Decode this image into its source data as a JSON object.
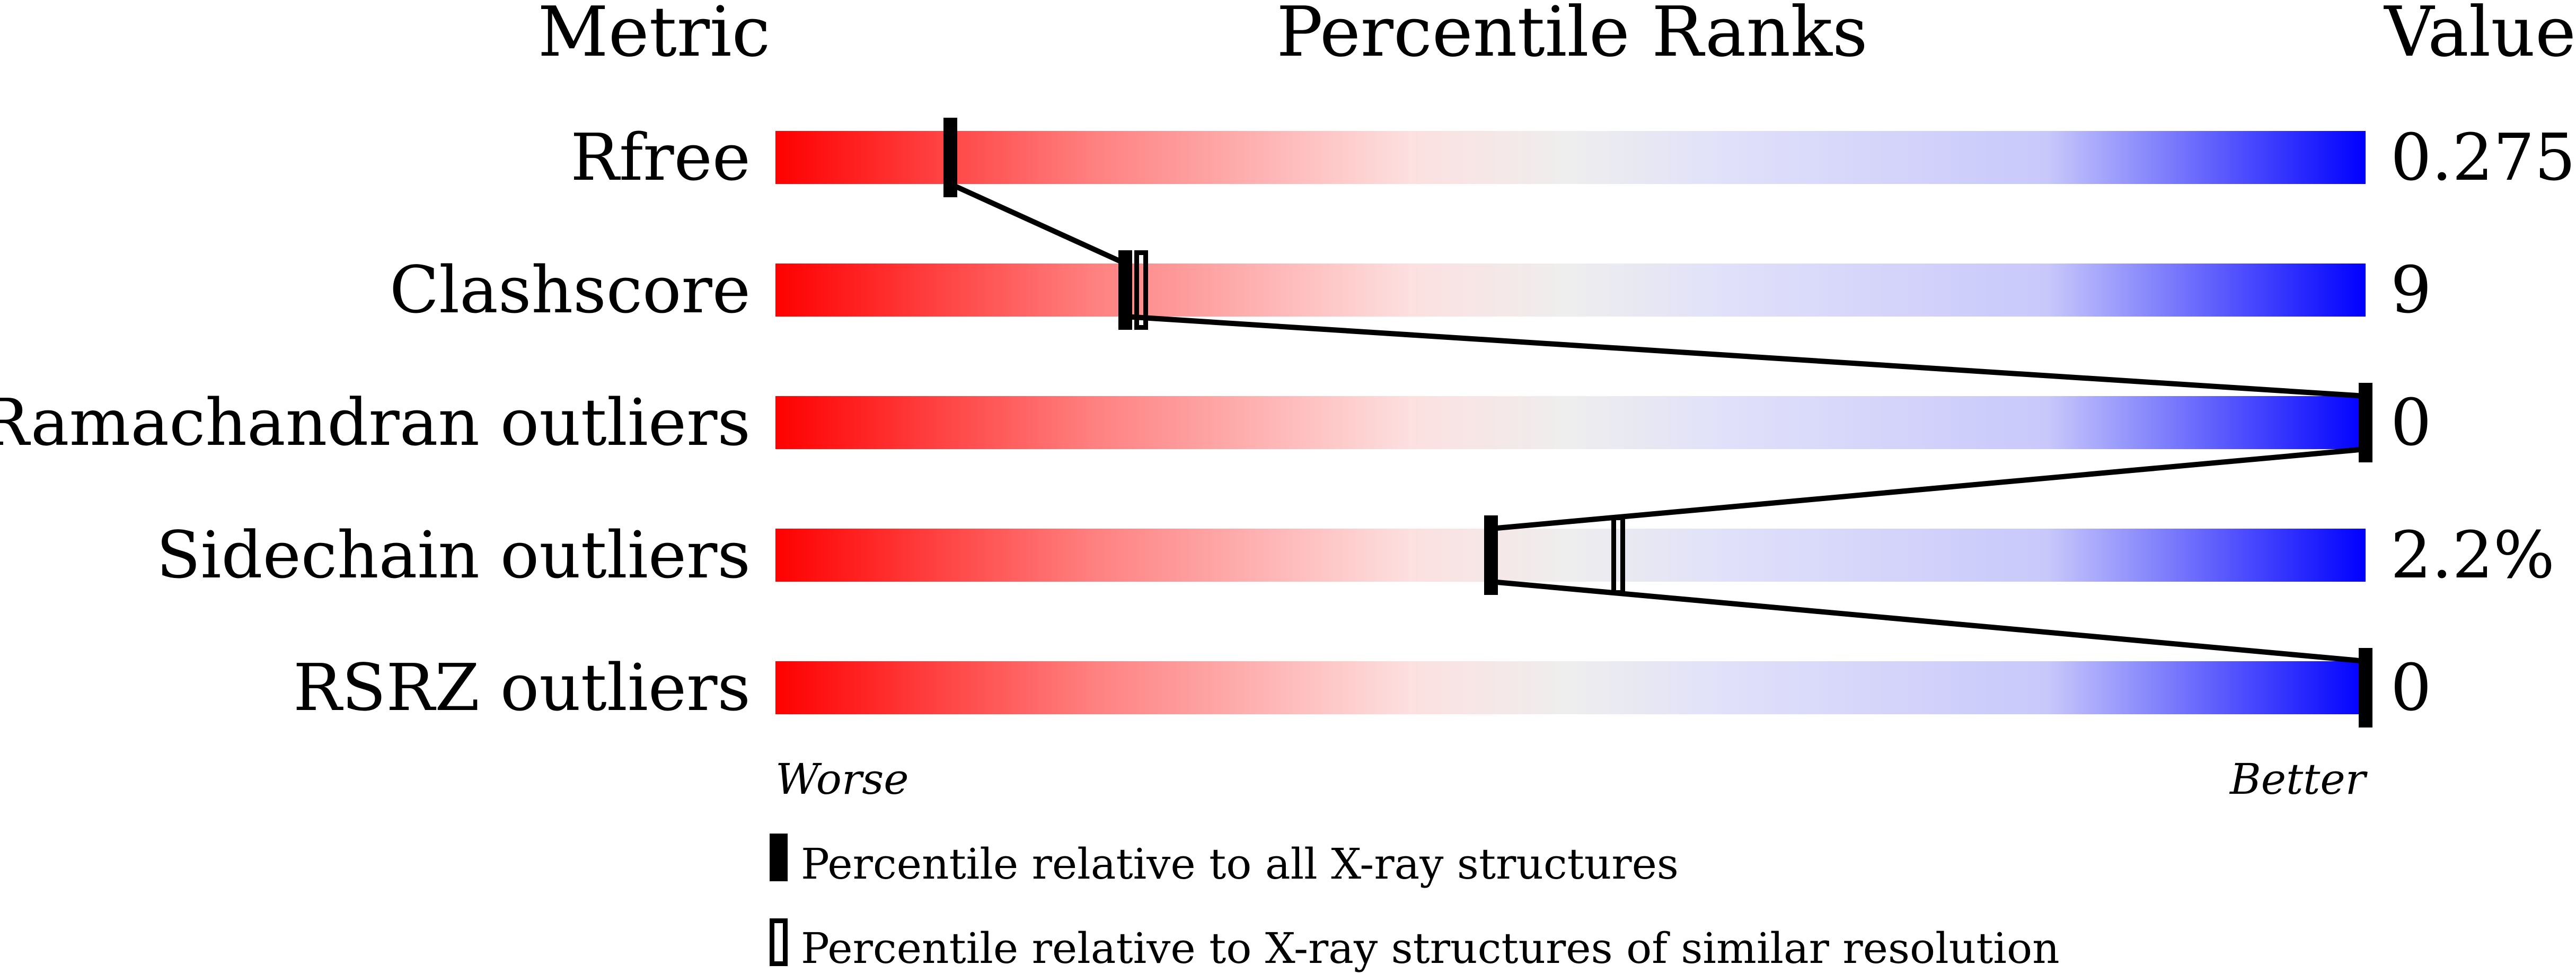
{
  "chart_data": {
    "type": "bar",
    "headers": {
      "metric": "Metric",
      "ranks": "Percentile Ranks",
      "value": "Value"
    },
    "metrics": [
      {
        "name": "Rfree",
        "value": "0.275",
        "percentile_all": 11,
        "percentile_similar": 11
      },
      {
        "name": "Clashscore",
        "value": "9",
        "percentile_all": 22,
        "percentile_similar": 23
      },
      {
        "name": "Ramachandran outliers",
        "value": "0",
        "percentile_all": 100,
        "percentile_similar": null
      },
      {
        "name": "Sidechain outliers",
        "value": "2.2%",
        "percentile_all": 45,
        "percentile_similar": 53
      },
      {
        "name": "RSRZ outliers",
        "value": "0",
        "percentile_all": 100,
        "percentile_similar": null
      }
    ],
    "xlim": [
      0,
      100
    ],
    "axis_labels": {
      "left": "Worse",
      "right": "Better"
    },
    "legend": {
      "all": "Percentile relative to all X-ray structures",
      "similar": "Percentile relative to X-ray structures of similar resolution",
      "placement": "bottom"
    },
    "colors": {
      "worse": "#ff0000",
      "middle": "#eeeeee",
      "better": "#0000ff",
      "marker": "#000000"
    }
  }
}
